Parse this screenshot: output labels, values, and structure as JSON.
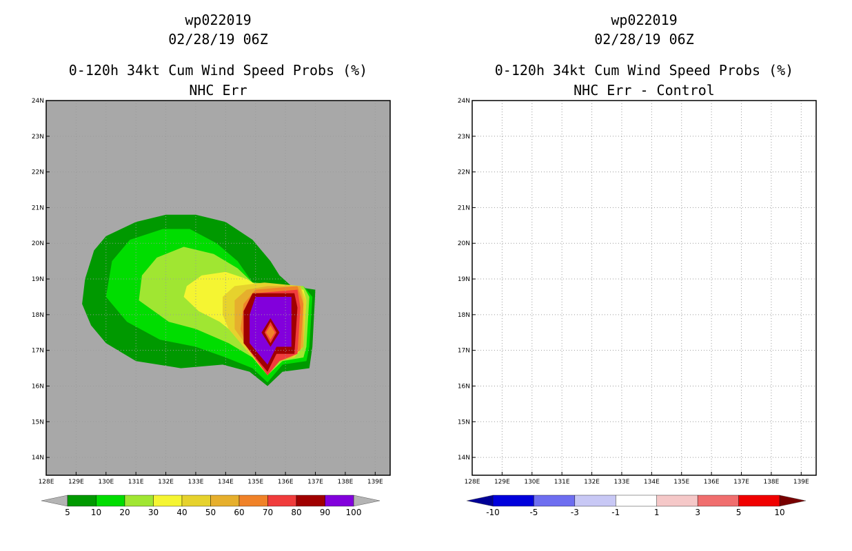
{
  "left": {
    "title_storm": "wp022019",
    "title_time": "02/28/19 06Z",
    "title_product": "0-120h 34kt Cum Wind Speed Probs (%)",
    "title_sub": "NHC Err",
    "colorbar_labels": [
      "5",
      "10",
      "20",
      "30",
      "40",
      "50",
      "60",
      "70",
      "80",
      "90",
      "100"
    ],
    "colorbar_colors": [
      "#009900",
      "#00dd00",
      "#a0e632",
      "#f5f532",
      "#e6d22d",
      "#e6af2d",
      "#f08228",
      "#f03c3c",
      "#a00000",
      "#8200dc"
    ],
    "background_color": "#a8a8a8"
  },
  "right": {
    "title_storm": "wp022019",
    "title_time": "02/28/19 06Z",
    "title_product": "0-120h 34kt Cum Wind Speed Probs (%)",
    "title_sub": "NHC Err - Control",
    "colorbar_labels": [
      "-10",
      "-5",
      "-3",
      "-1",
      "1",
      "3",
      "5",
      "10"
    ],
    "colorbar_colors": [
      "#0000dc",
      "#6e6ef0",
      "#c8c8f5",
      "#ffffff",
      "#f5c8c8",
      "#f06e6e",
      "#f00000"
    ],
    "colorbar_end_colors": [
      "#000096",
      "#780000"
    ]
  },
  "map": {
    "lon_labels": [
      "128E",
      "129E",
      "130E",
      "131E",
      "132E",
      "133E",
      "134E",
      "135E",
      "136E",
      "137E",
      "138E",
      "139E"
    ],
    "lat_labels": [
      "24N",
      "23N",
      "22N",
      "21N",
      "20N",
      "19N",
      "18N",
      "17N",
      "16N",
      "15N",
      "14N"
    ],
    "lon_range": [
      128,
      139.5
    ],
    "lat_range": [
      13.5,
      24
    ]
  },
  "probability_contours": [
    {
      "level": 5,
      "color": "#009900",
      "points": [
        [
          129.2,
          18.3
        ],
        [
          129.3,
          19
        ],
        [
          129.6,
          19.8
        ],
        [
          130,
          20.2
        ],
        [
          131,
          20.6
        ],
        [
          132,
          20.8
        ],
        [
          133,
          20.8
        ],
        [
          134,
          20.6
        ],
        [
          134.9,
          20.1
        ],
        [
          135.5,
          19.5
        ],
        [
          135.8,
          19.1
        ],
        [
          136.2,
          18.8
        ],
        [
          137,
          18.7
        ],
        [
          136.9,
          17.1
        ],
        [
          136.8,
          16.5
        ],
        [
          135.9,
          16.4
        ],
        [
          135.4,
          16
        ],
        [
          134.8,
          16.4
        ],
        [
          133.9,
          16.6
        ],
        [
          132.5,
          16.5
        ],
        [
          131,
          16.7
        ],
        [
          130,
          17.2
        ],
        [
          129.5,
          17.7
        ]
      ]
    },
    {
      "level": 10,
      "color": "#00dd00",
      "points": [
        [
          130,
          18.5
        ],
        [
          130.2,
          19.5
        ],
        [
          130.8,
          20.1
        ],
        [
          131.9,
          20.4
        ],
        [
          132.8,
          20.4
        ],
        [
          133.7,
          20
        ],
        [
          134.4,
          19.5
        ],
        [
          134.9,
          18.9
        ],
        [
          135.2,
          18.8
        ],
        [
          136.6,
          18.8
        ],
        [
          136.9,
          18.5
        ],
        [
          136.8,
          17.1
        ],
        [
          136.7,
          16.7
        ],
        [
          135.9,
          16.6
        ],
        [
          135.4,
          16.1
        ],
        [
          134.9,
          16.5
        ],
        [
          134,
          16.8
        ],
        [
          133,
          17.1
        ],
        [
          131.8,
          17.3
        ],
        [
          130.7,
          17.8
        ]
      ]
    },
    {
      "level": 20,
      "color": "#a0e632",
      "points": [
        [
          131.1,
          18.4
        ],
        [
          131.2,
          19.1
        ],
        [
          131.7,
          19.6
        ],
        [
          132.6,
          19.9
        ],
        [
          133.6,
          19.7
        ],
        [
          134.4,
          19.3
        ],
        [
          134.9,
          18.9
        ],
        [
          136.6,
          18.8
        ],
        [
          136.8,
          18.5
        ],
        [
          136.7,
          17.1
        ],
        [
          136.6,
          16.8
        ],
        [
          135.9,
          16.7
        ],
        [
          135.4,
          16.3
        ],
        [
          134.9,
          16.8
        ],
        [
          134.1,
          17.2
        ],
        [
          133,
          17.6
        ],
        [
          132.1,
          17.8
        ]
      ]
    },
    {
      "level": 30,
      "color": "#f5f532",
      "points": [
        [
          132.6,
          18.5
        ],
        [
          132.7,
          18.8
        ],
        [
          133.2,
          19.1
        ],
        [
          134,
          19.2
        ],
        [
          134.7,
          19
        ],
        [
          135.1,
          18.8
        ],
        [
          136.6,
          18.7
        ],
        [
          136.7,
          18.4
        ],
        [
          136.6,
          17.2
        ],
        [
          136.4,
          16.9
        ],
        [
          135.8,
          16.8
        ],
        [
          135.4,
          16.4
        ],
        [
          135,
          16.8
        ],
        [
          134.4,
          17.4
        ],
        [
          133.8,
          17.8
        ],
        [
          133.1,
          18.1
        ]
      ]
    },
    {
      "level": 40,
      "color": "#e6d22d",
      "points": [
        [
          133.9,
          18.5
        ],
        [
          134.3,
          18.8
        ],
        [
          135.3,
          18.9
        ],
        [
          136.5,
          18.8
        ],
        [
          136.7,
          18.4
        ],
        [
          136.6,
          17.1
        ],
        [
          136.3,
          16.8
        ],
        [
          135.7,
          16.7
        ],
        [
          135.4,
          16.3
        ],
        [
          134.8,
          16.9
        ],
        [
          134.1,
          17.6
        ],
        [
          133.9,
          18
        ]
      ]
    },
    {
      "level": 50,
      "color": "#e6af2d",
      "points": [
        [
          134.3,
          18.4
        ],
        [
          134.7,
          18.7
        ],
        [
          135.4,
          18.8
        ],
        [
          136.5,
          18.8
        ],
        [
          136.6,
          18.4
        ],
        [
          136.6,
          17.1
        ],
        [
          136.2,
          16.8
        ],
        [
          135.8,
          16.7
        ],
        [
          135.4,
          16.3
        ],
        [
          134.9,
          16.9
        ],
        [
          134.3,
          17.6
        ]
      ]
    },
    {
      "level": 60,
      "color": "#f08228",
      "points": [
        [
          134.6,
          18.3
        ],
        [
          135,
          18.7
        ],
        [
          136.4,
          18.8
        ],
        [
          136.6,
          18.3
        ],
        [
          136.5,
          17
        ],
        [
          135.8,
          16.7
        ],
        [
          135.4,
          16.3
        ],
        [
          134.7,
          17.1
        ],
        [
          134.5,
          17.6
        ]
      ]
    },
    {
      "level": 70,
      "color": "#f03c3c",
      "points": [
        [
          134.6,
          18.1
        ],
        [
          135,
          18.6
        ],
        [
          136.4,
          18.7
        ],
        [
          136.5,
          18.2
        ],
        [
          136.4,
          16.9
        ],
        [
          135.8,
          16.7
        ],
        [
          135.4,
          16.3
        ],
        [
          134.7,
          17.1
        ],
        [
          134.6,
          17.6
        ]
      ]
    },
    {
      "level": 80,
      "color": "#a00000",
      "points": [
        [
          134.6,
          18.1
        ],
        [
          134.9,
          18.6
        ],
        [
          136.3,
          18.6
        ],
        [
          136.4,
          18.2
        ],
        [
          136.3,
          16.9
        ],
        [
          135.7,
          16.9
        ],
        [
          135.4,
          16.4
        ],
        [
          134.6,
          17.2
        ]
      ]
    },
    {
      "level": 90,
      "color": "#8200dc",
      "points": [
        [
          134.8,
          18
        ],
        [
          135,
          18.5
        ],
        [
          136.2,
          18.5
        ],
        [
          136.2,
          17.1
        ],
        [
          135.7,
          17.1
        ],
        [
          135.4,
          16.6
        ],
        [
          134.8,
          17.2
        ]
      ]
    },
    {
      "level": 80,
      "color": "#a00000",
      "points": [
        [
          135.5,
          17.9
        ],
        [
          135.8,
          17.5
        ],
        [
          135.5,
          17.1
        ],
        [
          135.2,
          17.5
        ]
      ]
    },
    {
      "level": 70,
      "color": "#f03c3c",
      "points": [
        [
          135.5,
          17.8
        ],
        [
          135.7,
          17.5
        ],
        [
          135.5,
          17.2
        ],
        [
          135.3,
          17.5
        ]
      ]
    },
    {
      "level": 60,
      "color": "#f08228",
      "points": [
        [
          135.5,
          17.7
        ],
        [
          135.65,
          17.5
        ],
        [
          135.5,
          17.3
        ],
        [
          135.35,
          17.5
        ]
      ]
    }
  ]
}
